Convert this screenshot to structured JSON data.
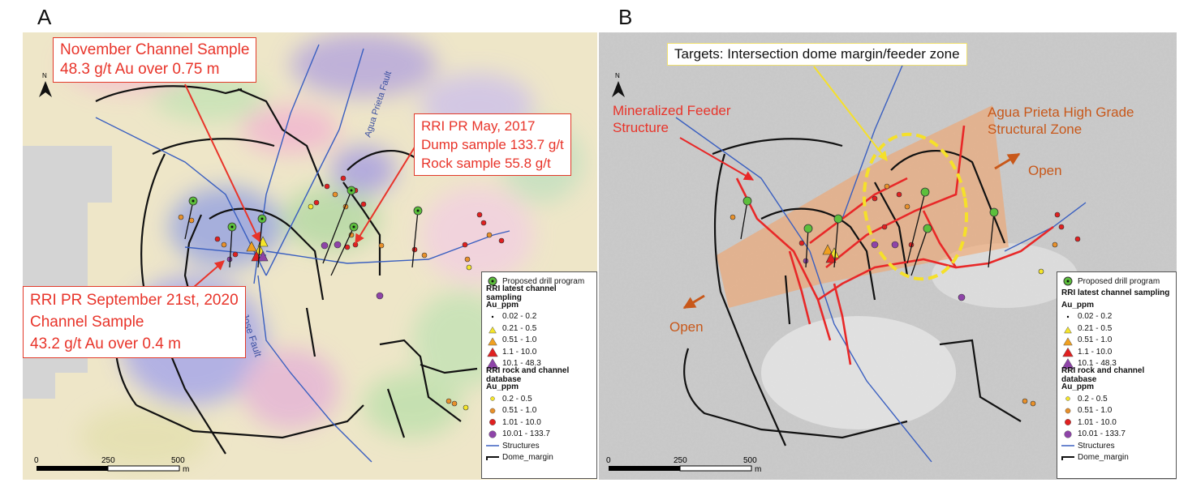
{
  "panels": {
    "a": {
      "letter": "A",
      "north": "N",
      "callouts": {
        "november": [
          "November Channel Sample",
          "48.3 g/t Au over 0.75 m"
        ],
        "may2017": [
          "RRI PR May, 2017",
          "Dump sample 133.7 g/t",
          "Rock sample 55.8 g/t"
        ],
        "sept2020": [
          "RRI PR September 21st, 2020",
          "Channel Sample",
          "43.2 g/t Au over 0.4 m"
        ]
      },
      "fault_labels": {
        "agua_prieta": "Agua Prieta Fault",
        "san_jose": "San Jose Fault"
      },
      "scale": {
        "ticks": [
          "0",
          "250",
          "500"
        ],
        "unit": "m"
      }
    },
    "b": {
      "letter": "B",
      "north": "N",
      "target_label": "Targets: Intersection dome margin/feeder zone",
      "feeder_label": [
        "Mineralized Feeder",
        "Structure"
      ],
      "zone_label": [
        "Agua Prieta High Grade",
        "Structural Zone"
      ],
      "open_labels": [
        "Open",
        "Open"
      ],
      "scale": {
        "ticks": [
          "0",
          "250",
          "500"
        ],
        "unit": "m"
      }
    }
  },
  "legend": {
    "drill": "Proposed drill program",
    "latest_header": "RRI latest channel sampling",
    "unit": "Au_ppm",
    "latest": [
      {
        "label": "0.02 - 0.2",
        "color": "#000000"
      },
      {
        "label": "0.21 - 0.5",
        "color": "#f5e52a"
      },
      {
        "label": "0.51 - 1.0",
        "color": "#f0a020"
      },
      {
        "label": "1.1 - 10.0",
        "color": "#e02020"
      },
      {
        "label": "10.1 - 48.3",
        "color": "#8e44a8"
      }
    ],
    "database_header": "RRI rock and channel database",
    "database": [
      {
        "label": "0.2 - 0.5",
        "color": "#f5e52a"
      },
      {
        "label": "0.51 - 1.0",
        "color": "#e8902a"
      },
      {
        "label": "1.01 - 10.0",
        "color": "#e02020"
      },
      {
        "label": "10.01 - 133.7",
        "color": "#8e44a8"
      }
    ],
    "structures": "Structures",
    "dome_margin": "Dome_margin"
  },
  "colors": {
    "structure": "#3a5fc0",
    "feeder": "#e82828",
    "target": "#f5e02a",
    "zone": "#f2a46a",
    "callout": "#e8342a"
  }
}
